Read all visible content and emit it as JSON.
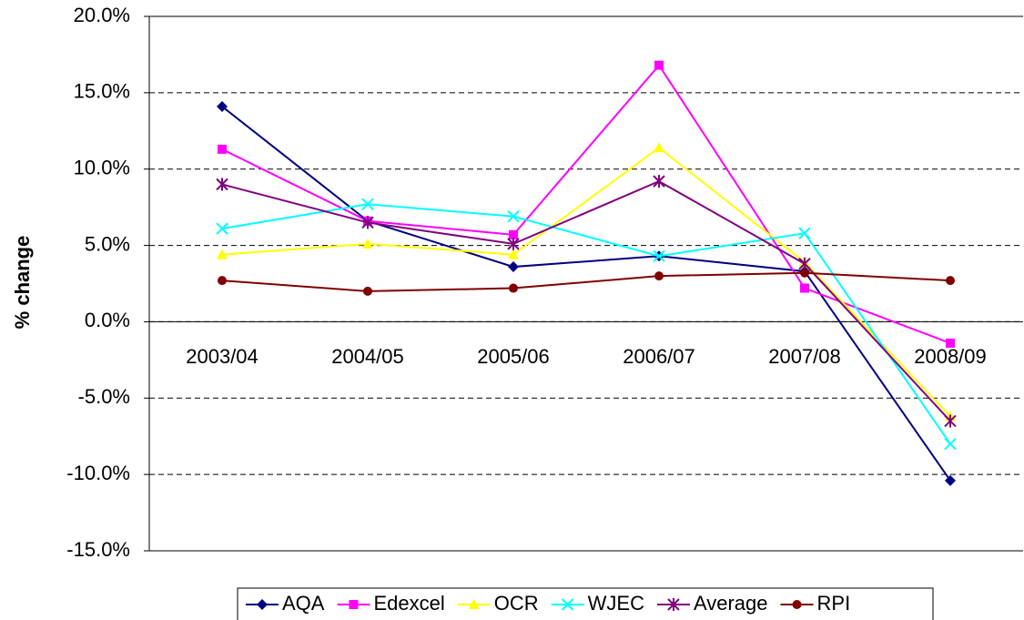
{
  "chart_data": {
    "type": "line",
    "y_label": "% change",
    "categories": [
      "2003/04",
      "2004/05",
      "2005/06",
      "2006/07",
      "2007/08",
      "2008/09"
    ],
    "series": [
      {
        "name": "AQA",
        "color": "#000080",
        "marker": "diamond",
        "values": [
          14.1,
          6.6,
          3.6,
          4.3,
          3.3,
          -10.4
        ]
      },
      {
        "name": "Edexcel",
        "color": "#ff00ff",
        "marker": "square",
        "values": [
          11.3,
          6.6,
          5.7,
          16.8,
          2.2,
          -1.4
        ]
      },
      {
        "name": "OCR",
        "color": "#ffff00",
        "marker": "triangle",
        "values": [
          4.4,
          5.1,
          4.4,
          11.4,
          3.9,
          -6.2
        ]
      },
      {
        "name": "WJEC",
        "color": "#00ffff",
        "marker": "x",
        "values": [
          6.1,
          7.7,
          6.9,
          4.3,
          5.8,
          -8.0
        ]
      },
      {
        "name": "Average",
        "color": "#800080",
        "marker": "star",
        "values": [
          9.0,
          6.5,
          5.1,
          9.2,
          3.8,
          -6.5
        ]
      },
      {
        "name": "RPI",
        "color": "#800000",
        "marker": "circle",
        "values": [
          2.7,
          2.0,
          2.2,
          3.0,
          3.2,
          2.7
        ]
      }
    ],
    "ylim": [
      -15,
      20
    ],
    "yticks": [
      {
        "value": -15,
        "label": "-15.0%"
      },
      {
        "value": -10,
        "label": "-10.0%"
      },
      {
        "value": -5,
        "label": "-5.0%"
      },
      {
        "value": 0,
        "label": "0.0%"
      },
      {
        "value": 5,
        "label": "5.0%"
      },
      {
        "value": 10,
        "label": "10.0%"
      },
      {
        "value": 15,
        "label": "15.0%"
      },
      {
        "value": 20,
        "label": "20.0%"
      }
    ],
    "grid": true,
    "legend": "bottom"
  }
}
